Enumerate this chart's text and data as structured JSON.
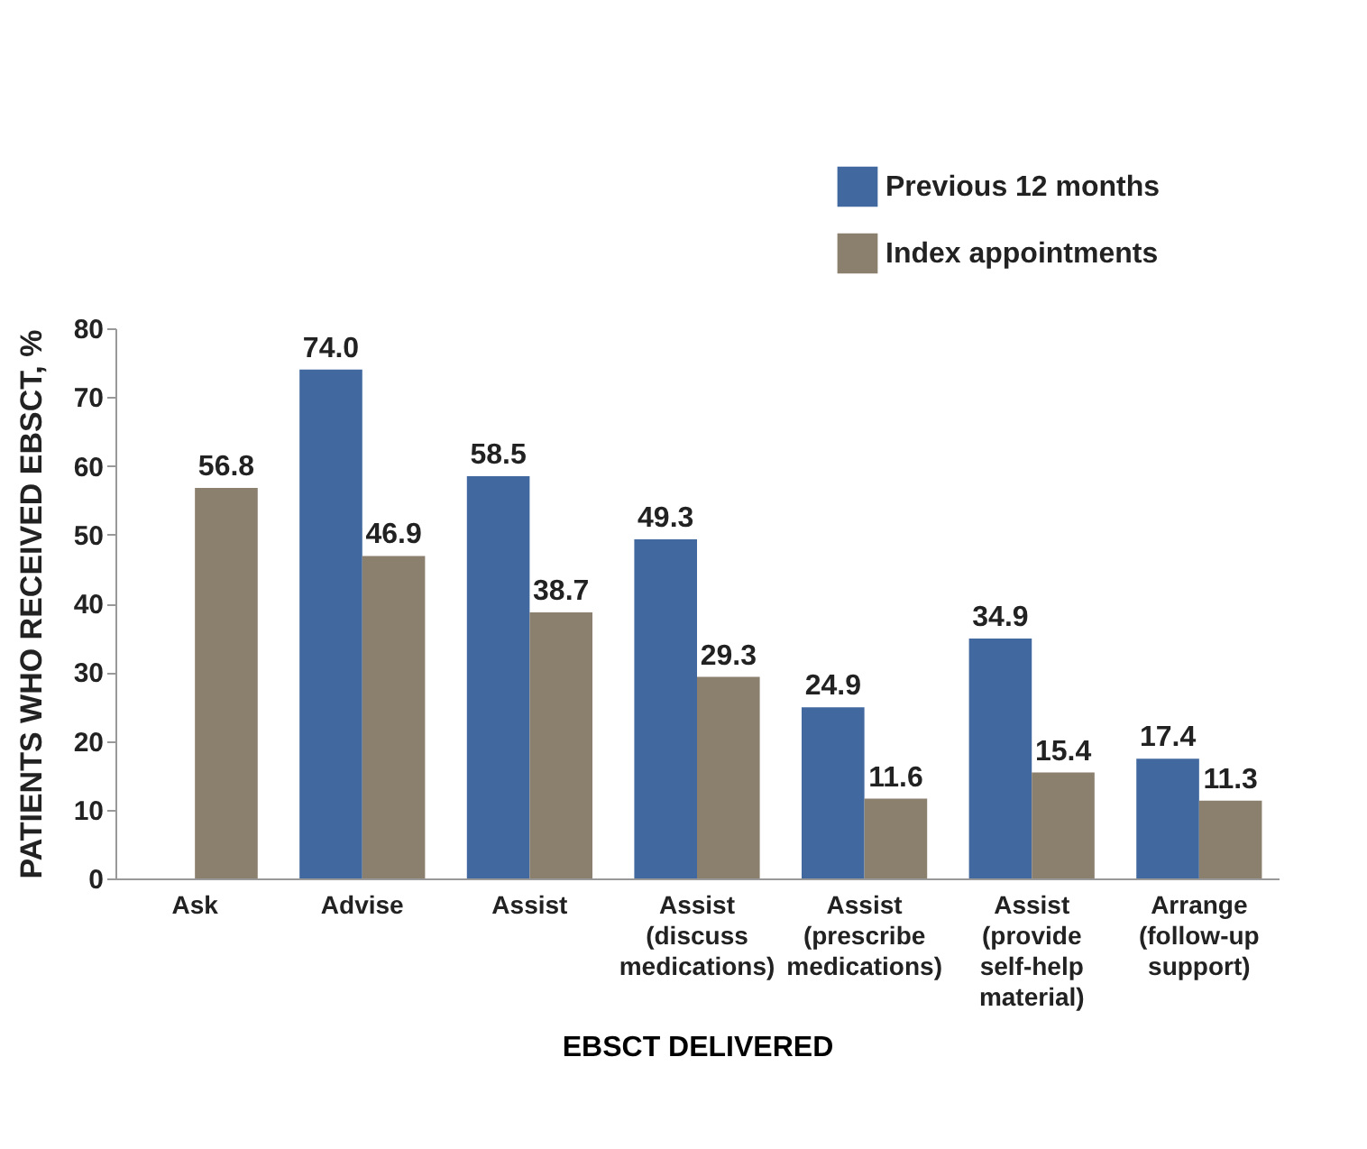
{
  "chart_data": {
    "type": "bar",
    "xlabel": "EBSCT DELIVERED",
    "ylabel": "PATIENTS WHO RECEIVED EBSCT, %",
    "categories": [
      "Ask",
      "Advise",
      "Assist",
      "Assist (discuss medications)",
      "Assist (prescribe medications)",
      "Assist (provide self-help material)",
      "Arrange (follow-up support)"
    ],
    "series": [
      {
        "name": "Previous 12 months",
        "color": "#41699f",
        "values": [
          null,
          74.0,
          58.5,
          49.3,
          24.9,
          34.9,
          17.4
        ],
        "value_labels": [
          null,
          "74.0",
          "58.5",
          "49.3",
          "24.9",
          "34.9",
          "17.4"
        ]
      },
      {
        "name": "Index appointments",
        "color": "#8b7f6e",
        "values": [
          56.8,
          46.9,
          38.7,
          29.3,
          11.6,
          15.4,
          11.3
        ],
        "value_labels": [
          "56.8",
          "46.9",
          "38.7",
          "29.3",
          "11.6",
          "15.4",
          "11.3"
        ]
      }
    ],
    "ylim": [
      0,
      80
    ],
    "yticks": [
      0,
      10,
      20,
      30,
      40,
      50,
      60,
      70,
      80
    ],
    "grid": false,
    "legend": "top right"
  }
}
